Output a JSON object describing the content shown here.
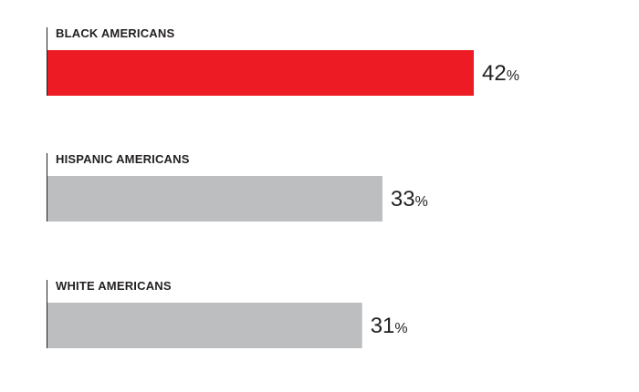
{
  "chart_data": {
    "type": "bar",
    "orientation": "horizontal",
    "categories": [
      "BLACK AMERICANS",
      "HISPANIC AMERICANS",
      "WHITE AMERICANS"
    ],
    "values": [
      42,
      33,
      31
    ],
    "value_unit": "%",
    "bar_colors": [
      "#ed1c24",
      "#bcbec0",
      "#bcbec0"
    ],
    "axis_color": "#231f20",
    "text_color": "#231f20",
    "grid": false,
    "legend": "none"
  }
}
